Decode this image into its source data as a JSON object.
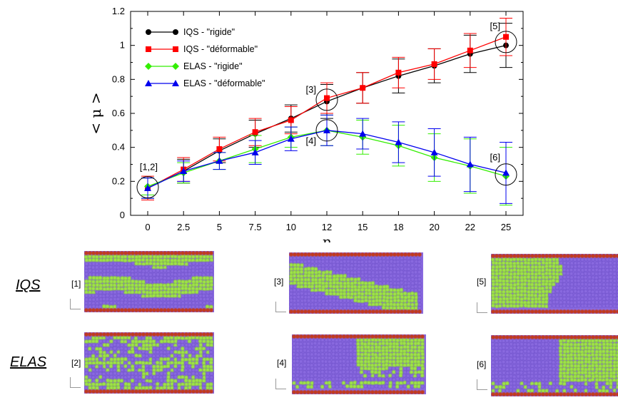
{
  "chart_data": {
    "type": "line",
    "categories": [
      "0",
      "2.5",
      "5",
      "7.5",
      "10",
      "12",
      "15",
      "18",
      "20",
      "22",
      "25"
    ],
    "xlabel": "η",
    "ylabel": "< μ >",
    "ylim": [
      0,
      1.2
    ],
    "yticks": [
      "0",
      "0.2",
      "0.4",
      "0.6",
      "0.8",
      "1",
      "1.2"
    ],
    "grid": false,
    "legend_position": "top-left",
    "series": [
      {
        "name": "IQS - \"rigide\"",
        "color": "#000000",
        "marker": "circle",
        "values": [
          0.16,
          0.26,
          0.38,
          0.48,
          0.57,
          0.67,
          0.75,
          0.82,
          0.88,
          0.95,
          1.0
        ],
        "errors": [
          0.06,
          0.07,
          0.07,
          0.08,
          0.08,
          0.1,
          0.09,
          0.1,
          0.1,
          0.11,
          0.13
        ]
      },
      {
        "name": "IQS  - \"déformable\"",
        "color": "#ff0000",
        "marker": "square",
        "values": [
          0.16,
          0.27,
          0.39,
          0.49,
          0.56,
          0.69,
          0.75,
          0.84,
          0.89,
          0.97,
          1.05
        ],
        "errors": [
          0.07,
          0.07,
          0.07,
          0.08,
          0.08,
          0.09,
          0.09,
          0.09,
          0.09,
          0.1,
          0.11
        ]
      },
      {
        "name": "ELAS - \"rigide\"",
        "color": "#33ee00",
        "marker": "diamond",
        "values": [
          0.17,
          0.25,
          0.32,
          0.39,
          0.46,
          0.5,
          0.46,
          0.41,
          0.34,
          0.29,
          0.23
        ],
        "errors": [
          0.05,
          0.06,
          0.05,
          0.08,
          0.06,
          0.09,
          0.1,
          0.12,
          0.14,
          0.16,
          0.17
        ]
      },
      {
        "name": "ELAS - \"déformable\"",
        "color": "#0000ee",
        "marker": "triangle",
        "values": [
          0.16,
          0.26,
          0.32,
          0.37,
          0.45,
          0.5,
          0.48,
          0.43,
          0.37,
          0.3,
          0.25
        ],
        "errors": [
          0.06,
          0.06,
          0.05,
          0.07,
          0.07,
          0.09,
          0.09,
          0.12,
          0.14,
          0.16,
          0.18
        ]
      }
    ],
    "annotations": [
      {
        "text": "[1,2]",
        "x_index": 0,
        "y": 0.165
      },
      {
        "text": "[3]",
        "x_index": 5,
        "y": 0.68
      },
      {
        "text": "[4]",
        "x_index": 5,
        "y": 0.5
      },
      {
        "text": "[5]",
        "x_index": 10,
        "y": 1.02
      },
      {
        "text": "[6]",
        "x_index": 10,
        "y": 0.24
      }
    ]
  },
  "snapshots": {
    "row_labels": [
      "IQS",
      "ELAS"
    ],
    "panels": [
      {
        "label": "[1]",
        "pattern": "stripes-4"
      },
      {
        "label": "[3]",
        "pattern": "diagonal"
      },
      {
        "label": "[5]",
        "pattern": "split-left-green"
      },
      {
        "label": "[2]",
        "pattern": "stripes-mixed"
      },
      {
        "label": "[4]",
        "pattern": "blocky"
      },
      {
        "label": "[6]",
        "pattern": "split-right-green"
      }
    ],
    "colors": {
      "violet": "#8a6ae0",
      "green": "#9fe34a",
      "wall": "#c23a1e"
    }
  }
}
